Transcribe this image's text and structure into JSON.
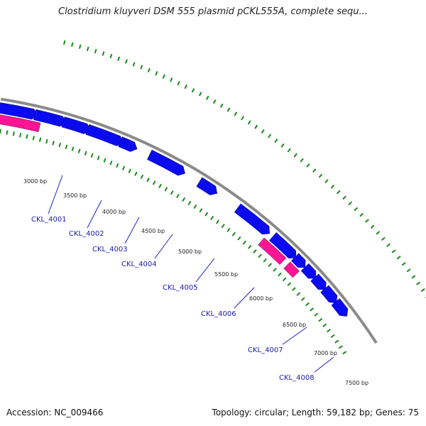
{
  "title": "Clostridium kluyveri DSM 555 plasmid pCKL555A, complete sequ...",
  "accession": "Accession: NC_009466",
  "summary": "Topology: circular; Length: 59,182 bp; Genes: 75",
  "colors": {
    "backbone": "#8a8a8a",
    "forward_gene": "#0a0af0",
    "reverse_gene": "#ff1493",
    "feature_dots": "#1a8a1a",
    "label_line": "#2020c0",
    "label_text": "#1a1ab0"
  },
  "scale_ticks": [
    {
      "bp": 3000,
      "label": "3000 bp"
    },
    {
      "bp": 3500,
      "label": "3500 bp"
    },
    {
      "bp": 4000,
      "label": "4000 bp"
    },
    {
      "bp": 4500,
      "label": "4500 bp"
    },
    {
      "bp": 5000,
      "label": "5000 bp"
    },
    {
      "bp": 5500,
      "label": "5500 bp"
    },
    {
      "bp": 6000,
      "label": "6000 bp"
    },
    {
      "bp": 6500,
      "label": "6500 bp"
    },
    {
      "bp": 7000,
      "label": "7000 bp"
    },
    {
      "bp": 7500,
      "label": "7500 bp"
    }
  ],
  "gene_labels": [
    "CKL_4001",
    "CKL_4002",
    "CKL_4003",
    "CKL_4004",
    "CKL_4005",
    "CKL_4006",
    "CKL_4007",
    "CKL_4008"
  ]
}
